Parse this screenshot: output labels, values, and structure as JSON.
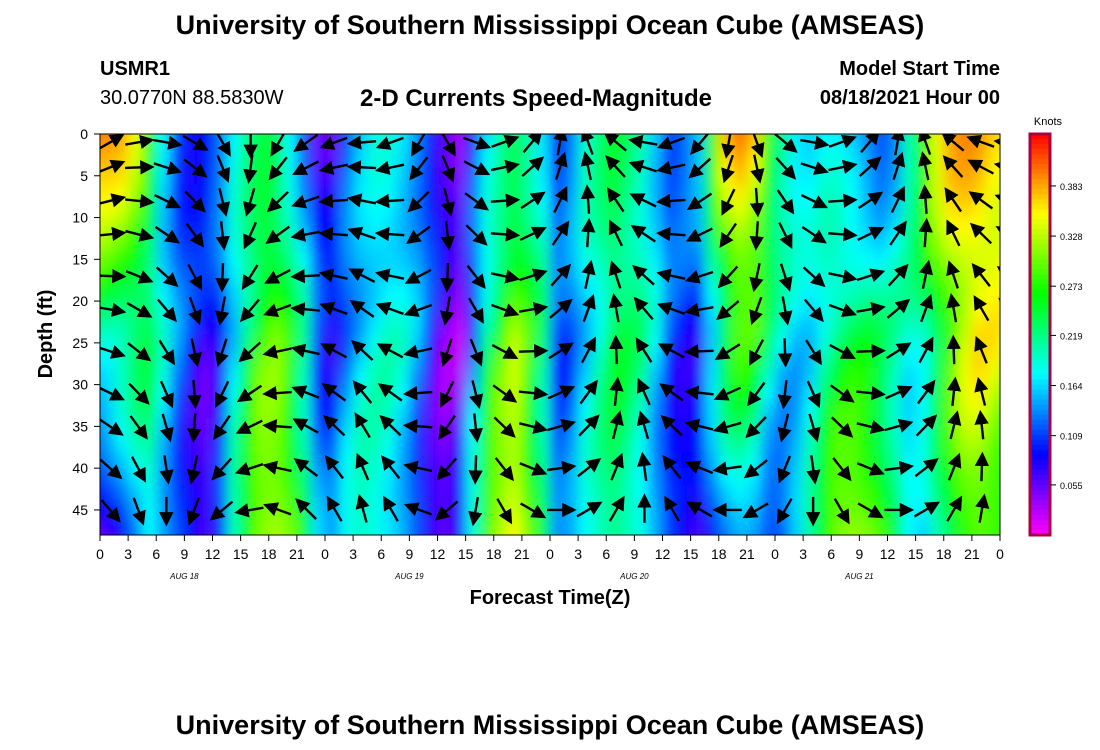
{
  "header": {
    "title": "University of Southern Mississippi Ocean Cube (AMSEAS)",
    "station_id": "USMR1",
    "coords": "30.0770N  88.5830W",
    "plot_title": "2-D Currents Speed-Magnitude",
    "model_label": "Model Start Time",
    "model_time": "08/18/2021 Hour 00"
  },
  "footer": {
    "title": "University of Southern Mississippi Ocean Cube (AMSEAS)"
  },
  "colors": {
    "background": "#ffffff",
    "frame": "#000000",
    "arrow": "#000000",
    "colorbar_frame": "#aa0044"
  },
  "chart_data": {
    "type": "heatmap",
    "title": "2-D Currents Speed-Magnitude",
    "xlabel": "Forecast Time(Z)",
    "ylabel": "Depth (ft)",
    "x_ticks": [
      "0",
      "3",
      "6",
      "9",
      "12",
      "15",
      "18",
      "21",
      "0",
      "3",
      "6",
      "9",
      "12",
      "15",
      "18",
      "21",
      "0",
      "3",
      "6",
      "9",
      "12",
      "15",
      "18",
      "21",
      "0",
      "3",
      "6",
      "9",
      "12",
      "15",
      "18",
      "21",
      "0"
    ],
    "day_labels": [
      "AUG 18",
      "AUG 19",
      "AUG 20",
      "AUG 21"
    ],
    "y_ticks": [
      0,
      5,
      10,
      15,
      20,
      25,
      30,
      35,
      40,
      45
    ],
    "ylim": [
      0,
      48
    ],
    "xlim_hours": [
      0,
      96
    ],
    "colorbar": {
      "label": "Knots",
      "ticks": [
        "0.383",
        "0.328",
        "0.273",
        "0.219",
        "0.164",
        "0.109",
        "0.055"
      ],
      "range": [
        0.0,
        0.44
      ]
    },
    "speed_profile_by_hour": [
      {
        "h": 0,
        "surface": 0.4,
        "deep": 0.05
      },
      {
        "h": 3,
        "surface": 0.38,
        "deep": 0.1
      },
      {
        "h": 5,
        "surface": 0.3,
        "deep": 0.18
      },
      {
        "h": 7,
        "surface": 0.16,
        "deep": 0.14
      },
      {
        "h": 9,
        "surface": 0.08,
        "deep": 0.1
      },
      {
        "h": 12,
        "surface": 0.1,
        "deep": 0.05
      },
      {
        "h": 15,
        "surface": 0.2,
        "deep": 0.25
      },
      {
        "h": 18,
        "surface": 0.26,
        "deep": 0.33
      },
      {
        "h": 21,
        "surface": 0.15,
        "deep": 0.3
      },
      {
        "h": 24,
        "surface": 0.02,
        "deep": 0.12
      },
      {
        "h": 27,
        "surface": 0.14,
        "deep": 0.2
      },
      {
        "h": 30,
        "surface": 0.2,
        "deep": 0.18
      },
      {
        "h": 33,
        "surface": 0.16,
        "deep": 0.14
      },
      {
        "h": 36,
        "surface": 0.08,
        "deep": 0.05
      },
      {
        "h": 38,
        "surface": 0.02,
        "deep": 0.06
      },
      {
        "h": 41,
        "surface": 0.16,
        "deep": 0.28
      },
      {
        "h": 44,
        "surface": 0.24,
        "deep": 0.36
      },
      {
        "h": 47,
        "surface": 0.18,
        "deep": 0.26
      },
      {
        "h": 49,
        "surface": 0.08,
        "deep": 0.12
      },
      {
        "h": 52,
        "surface": 0.2,
        "deep": 0.18
      },
      {
        "h": 55,
        "surface": 0.26,
        "deep": 0.22
      },
      {
        "h": 58,
        "surface": 0.2,
        "deep": 0.18
      },
      {
        "h": 61,
        "surface": 0.1,
        "deep": 0.1
      },
      {
        "h": 64,
        "surface": 0.16,
        "deep": 0.06
      },
      {
        "h": 66,
        "surface": 0.36,
        "deep": 0.12
      },
      {
        "h": 69,
        "surface": 0.42,
        "deep": 0.16
      },
      {
        "h": 72,
        "surface": 0.24,
        "deep": 0.1
      },
      {
        "h": 75,
        "surface": 0.15,
        "deep": 0.18
      },
      {
        "h": 78,
        "surface": 0.18,
        "deep": 0.3
      },
      {
        "h": 81,
        "surface": 0.15,
        "deep": 0.32
      },
      {
        "h": 84,
        "surface": 0.1,
        "deep": 0.28
      },
      {
        "h": 87,
        "surface": 0.24,
        "deep": 0.14
      },
      {
        "h": 90,
        "surface": 0.38,
        "deep": 0.22
      },
      {
        "h": 93,
        "surface": 0.4,
        "deep": 0.3
      },
      {
        "h": 96,
        "surface": 0.36,
        "deep": 0.28
      }
    ],
    "arrow_grid": {
      "hours_step": 3,
      "depths_ft": [
        1,
        4,
        8,
        12,
        17,
        21,
        26,
        31,
        35,
        40,
        45
      ],
      "direction_by_hour": [
        -30,
        -10,
        10,
        30,
        60,
        90,
        120,
        145,
        160,
        175,
        160,
        120,
        60,
        20,
        -20,
        -50,
        -80,
        -110,
        -140,
        -170,
        160,
        130,
        100,
        70,
        40,
        10,
        -20,
        -50,
        -80,
        -110,
        -140,
        -160,
        -175
      ]
    }
  }
}
